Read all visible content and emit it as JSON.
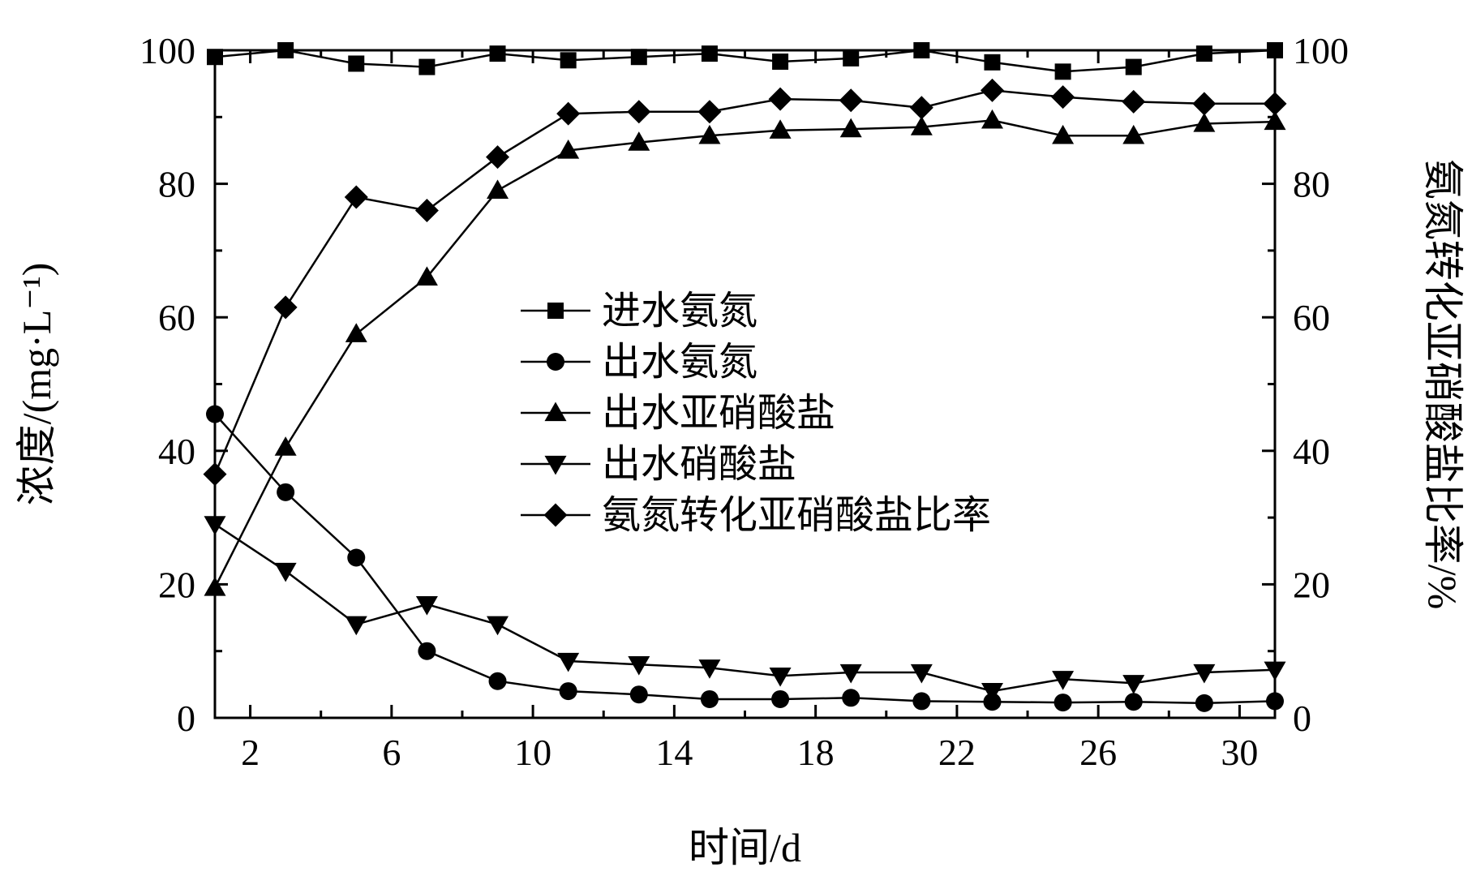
{
  "chart_data": {
    "type": "line",
    "xlabel": "时间/d",
    "ylabel_left": "浓度/(mg·L⁻¹)",
    "ylabel_right": "氨氮转化亚硝酸盐比率/%",
    "xlim": [
      1,
      31
    ],
    "ylim_left": [
      0,
      100
    ],
    "ylim_right": [
      0,
      100
    ],
    "x_ticks": [
      2,
      6,
      10,
      14,
      18,
      22,
      26,
      30
    ],
    "y_ticks_left": [
      0,
      20,
      40,
      60,
      80,
      100
    ],
    "y_ticks_right": [
      0,
      20,
      40,
      60,
      80,
      100
    ],
    "legend_position": "center",
    "grid": false,
    "x": [
      1,
      3,
      5,
      7,
      9,
      11,
      13,
      15,
      17,
      19,
      21,
      23,
      25,
      27,
      29,
      31
    ],
    "series": [
      {
        "name": "进水氨氮",
        "marker": "square",
        "axis": "left",
        "values": [
          99,
          100,
          98,
          97.5,
          99.5,
          98.5,
          99,
          99.5,
          98.3,
          98.8,
          100,
          98.2,
          96.8,
          97.5,
          99.5,
          100
        ]
      },
      {
        "name": "出水氨氮",
        "marker": "circle",
        "axis": "left",
        "values": [
          45.5,
          33.8,
          24,
          10,
          5.5,
          4,
          3.5,
          2.8,
          2.8,
          3,
          2.5,
          2.4,
          2.3,
          2.4,
          2.2,
          2.5
        ]
      },
      {
        "name": "出水亚硝酸盐",
        "marker": "triangle-up",
        "axis": "left",
        "values": [
          19.5,
          40.5,
          57.5,
          66,
          79,
          85,
          86.2,
          87.2,
          88,
          88.2,
          88.5,
          89.5,
          87.2,
          87.2,
          89,
          89.3
        ]
      },
      {
        "name": "出水硝酸盐",
        "marker": "triangle-down",
        "axis": "left",
        "values": [
          29,
          22,
          14,
          17,
          14,
          8.5,
          8,
          7.5,
          6.3,
          6.8,
          6.8,
          4,
          5.8,
          5.2,
          6.8,
          7.2
        ]
      },
      {
        "name": "氨氮转化亚硝酸盐比率",
        "marker": "diamond",
        "axis": "right",
        "values": [
          36.5,
          61.5,
          78,
          76,
          84,
          90.5,
          90.8,
          90.8,
          92.7,
          92.5,
          91.4,
          94,
          93,
          92.3,
          92,
          92
        ]
      }
    ]
  }
}
